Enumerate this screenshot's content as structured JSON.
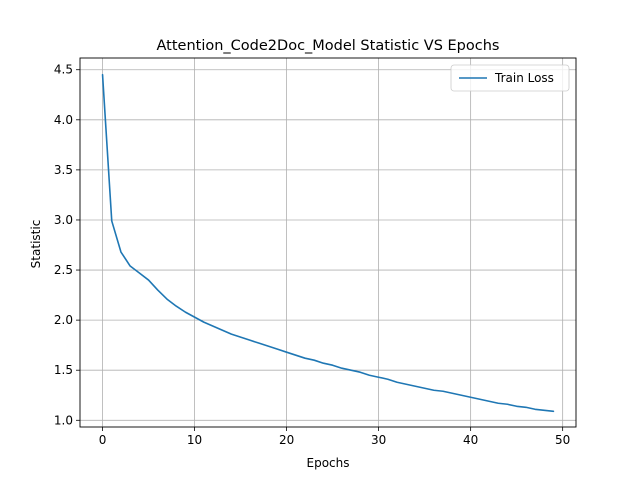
{
  "chart_data": {
    "type": "line",
    "title": "Attention_Code2Doc_Model Statistic VS Epochs",
    "xlabel": "Epochs",
    "ylabel": "Statistic",
    "xlim": [
      -2.45,
      51.45
    ],
    "ylim": [
      0.933,
      4.617
    ],
    "grid": true,
    "legend_placement": "top-right",
    "x_ticks": [
      0,
      10,
      20,
      30,
      40,
      50
    ],
    "y_ticks": [
      1.0,
      1.5,
      2.0,
      2.5,
      3.0,
      3.5,
      4.0,
      4.5
    ],
    "x_tick_labels": [
      "0",
      "10",
      "20",
      "30",
      "40",
      "50"
    ],
    "y_tick_labels": [
      "1.0",
      "1.5",
      "2.0",
      "2.5",
      "3.0",
      "3.5",
      "4.0",
      "4.5"
    ],
    "series": [
      {
        "name": "Train Loss",
        "color": "#1f77b4",
        "x": [
          0,
          1,
          2,
          3,
          4,
          5,
          6,
          7,
          8,
          9,
          10,
          11,
          12,
          13,
          14,
          15,
          16,
          17,
          18,
          19,
          20,
          21,
          22,
          23,
          24,
          25,
          26,
          27,
          28,
          29,
          30,
          31,
          32,
          33,
          34,
          35,
          36,
          37,
          38,
          39,
          40,
          41,
          42,
          43,
          44,
          45,
          46,
          47,
          48,
          49
        ],
        "y": [
          4.45,
          2.99,
          2.68,
          2.54,
          2.47,
          2.4,
          2.3,
          2.21,
          2.14,
          2.08,
          2.03,
          1.98,
          1.94,
          1.9,
          1.86,
          1.83,
          1.8,
          1.77,
          1.74,
          1.71,
          1.68,
          1.65,
          1.62,
          1.6,
          1.57,
          1.55,
          1.52,
          1.5,
          1.48,
          1.45,
          1.43,
          1.41,
          1.38,
          1.36,
          1.34,
          1.32,
          1.3,
          1.29,
          1.27,
          1.25,
          1.23,
          1.21,
          1.19,
          1.17,
          1.16,
          1.14,
          1.13,
          1.11,
          1.1,
          1.09
        ]
      }
    ]
  }
}
